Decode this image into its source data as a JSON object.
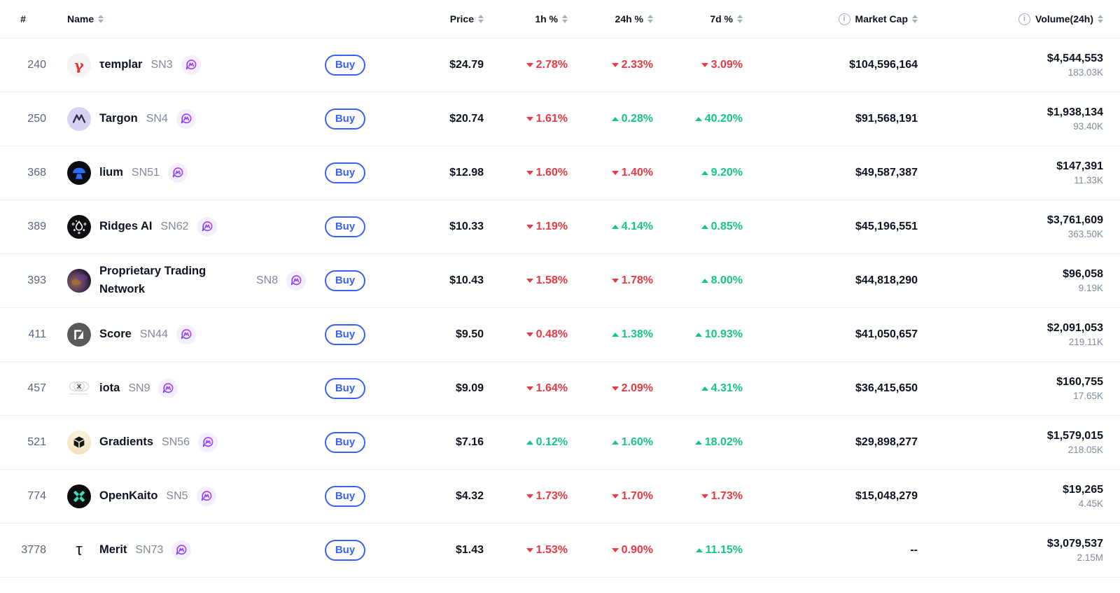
{
  "labels": {
    "buy": "Buy"
  },
  "colors": {
    "up_green": "#16c784",
    "down_red": "#ea3943",
    "buy_blue": "#3861fb",
    "text_dark": "#0d1421",
    "rank_gray": "#58667e",
    "sub_gray": "#808a9d",
    "separator": "#eff2f5",
    "sort_arrow_gray": "#a6b0c3",
    "chat_icon_bg": "#f4effe"
  },
  "header": {
    "columns": [
      {
        "label": "#",
        "sortable": false,
        "info": false
      },
      {
        "label": "Name",
        "sortable": true,
        "info": false
      },
      {
        "label": "",
        "sortable": false,
        "info": false
      },
      {
        "label": "Price",
        "sortable": true,
        "info": false
      },
      {
        "label": "1h %",
        "sortable": true,
        "info": false
      },
      {
        "label": "24h %",
        "sortable": true,
        "info": false
      },
      {
        "label": "7d %",
        "sortable": true,
        "info": false
      },
      {
        "label": "Market Cap",
        "sortable": true,
        "info": true
      },
      {
        "label": "Volume(24h)",
        "sortable": true,
        "info": true
      }
    ]
  },
  "rows": [
    {
      "rank": "240",
      "icon": "templar-logo",
      "name": "τemplar",
      "subnet": "SN3",
      "price": "$24.79",
      "h1": {
        "text": "2.78%",
        "dir": "down"
      },
      "h24": {
        "text": "2.33%",
        "dir": "down"
      },
      "d7": {
        "text": "3.09%",
        "dir": "down"
      },
      "market_cap": "$104,596,164",
      "volume_usd": "$4,544,553",
      "volume_base": "183.03K"
    },
    {
      "rank": "250",
      "icon": "targon-logo",
      "name": "Targon",
      "subnet": "SN4",
      "price": "$20.74",
      "h1": {
        "text": "1.61%",
        "dir": "down"
      },
      "h24": {
        "text": "0.28%",
        "dir": "up"
      },
      "d7": {
        "text": "40.20%",
        "dir": "up"
      },
      "market_cap": "$91,568,191",
      "volume_usd": "$1,938,134",
      "volume_base": "93.40K"
    },
    {
      "rank": "368",
      "icon": "lium-logo",
      "name": "lium",
      "subnet": "SN51",
      "price": "$12.98",
      "h1": {
        "text": "1.60%",
        "dir": "down"
      },
      "h24": {
        "text": "1.40%",
        "dir": "down"
      },
      "d7": {
        "text": "9.20%",
        "dir": "up"
      },
      "market_cap": "$49,587,387",
      "volume_usd": "$147,391",
      "volume_base": "11.33K"
    },
    {
      "rank": "389",
      "icon": "ridges-ai-logo",
      "name": "Ridges AI",
      "subnet": "SN62",
      "price": "$10.33",
      "h1": {
        "text": "1.19%",
        "dir": "down"
      },
      "h24": {
        "text": "4.14%",
        "dir": "up"
      },
      "d7": {
        "text": "0.85%",
        "dir": "up"
      },
      "market_cap": "$45,196,551",
      "volume_usd": "$3,761,609",
      "volume_base": "363.50K"
    },
    {
      "rank": "393",
      "icon": "proprietary-trading-network-logo",
      "name": "Proprietary Trading Network",
      "subnet": "SN8",
      "price": "$10.43",
      "h1": {
        "text": "1.58%",
        "dir": "down"
      },
      "h24": {
        "text": "1.78%",
        "dir": "down"
      },
      "d7": {
        "text": "8.00%",
        "dir": "up"
      },
      "market_cap": "$44,818,290",
      "volume_usd": "$96,058",
      "volume_base": "9.19K"
    },
    {
      "rank": "411",
      "icon": "score-logo",
      "name": "Score",
      "subnet": "SN44",
      "price": "$9.50",
      "h1": {
        "text": "0.48%",
        "dir": "down"
      },
      "h24": {
        "text": "1.38%",
        "dir": "up"
      },
      "d7": {
        "text": "10.93%",
        "dir": "up"
      },
      "market_cap": "$41,050,657",
      "volume_usd": "$2,091,053",
      "volume_base": "219.11K"
    },
    {
      "rank": "457",
      "icon": "iota-macrocosmos-logo",
      "name": "iota",
      "subnet": "SN9",
      "price": "$9.09",
      "h1": {
        "text": "1.64%",
        "dir": "down"
      },
      "h24": {
        "text": "2.09%",
        "dir": "down"
      },
      "d7": {
        "text": "4.31%",
        "dir": "up"
      },
      "market_cap": "$36,415,650",
      "volume_usd": "$160,755",
      "volume_base": "17.65K"
    },
    {
      "rank": "521",
      "icon": "gradients-logo",
      "name": "Gradients",
      "subnet": "SN56",
      "price": "$7.16",
      "h1": {
        "text": "0.12%",
        "dir": "up"
      },
      "h24": {
        "text": "1.60%",
        "dir": "up"
      },
      "d7": {
        "text": "18.02%",
        "dir": "up"
      },
      "market_cap": "$29,898,277",
      "volume_usd": "$1,579,015",
      "volume_base": "218.05K"
    },
    {
      "rank": "774",
      "icon": "openkaito-logo",
      "name": "OpenKaito",
      "subnet": "SN5",
      "price": "$4.32",
      "h1": {
        "text": "1.73%",
        "dir": "down"
      },
      "h24": {
        "text": "1.70%",
        "dir": "down"
      },
      "d7": {
        "text": "1.73%",
        "dir": "down"
      },
      "market_cap": "$15,048,279",
      "volume_usd": "$19,265",
      "volume_base": "4.45K"
    },
    {
      "rank": "3778",
      "icon": "merit-logo",
      "name": "Merit",
      "subnet": "SN73",
      "price": "$1.43",
      "h1": {
        "text": "1.53%",
        "dir": "down"
      },
      "h24": {
        "text": "0.90%",
        "dir": "down"
      },
      "d7": {
        "text": "11.15%",
        "dir": "up"
      },
      "market_cap": "--",
      "volume_usd": "$3,079,537",
      "volume_base": "2.15M"
    }
  ]
}
